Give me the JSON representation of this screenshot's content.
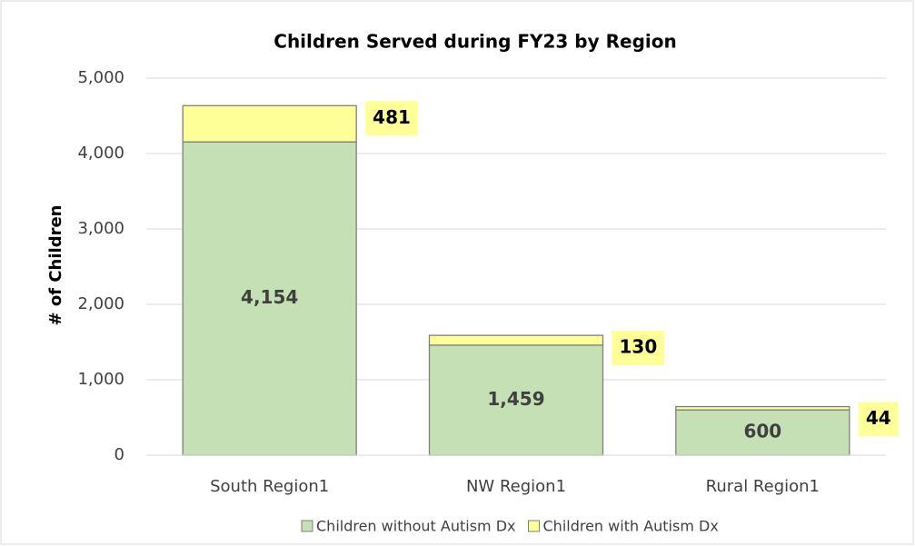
{
  "chart_data": {
    "type": "stacked_bar",
    "title": "Children Served during FY23 by Region",
    "y_label": "# of Children",
    "categories": [
      "South Region1",
      "NW Region1",
      "Rural Region1"
    ],
    "series": [
      {
        "name": "Children without Autism Dx",
        "color": "#c5e0b4",
        "values": [
          4154,
          1459,
          600
        ],
        "value_labels": [
          "4,154",
          "1,459",
          "600"
        ]
      },
      {
        "name": "Children with Autism Dx",
        "color": "#ffff99",
        "values": [
          481,
          130,
          44
        ]
      }
    ],
    "ylim": [
      0,
      5000
    ],
    "yticks": [
      0,
      {
        "value": 1000,
        "label": "1,000"
      },
      {
        "value": 2000,
        "label": "2,000"
      },
      {
        "value": 3000,
        "label": "3,000"
      },
      {
        "value": 4000,
        "label": "4,000"
      },
      {
        "value": 5000,
        "label": "5,000"
      }
    ],
    "grid": true,
    "legend": "bottom"
  }
}
